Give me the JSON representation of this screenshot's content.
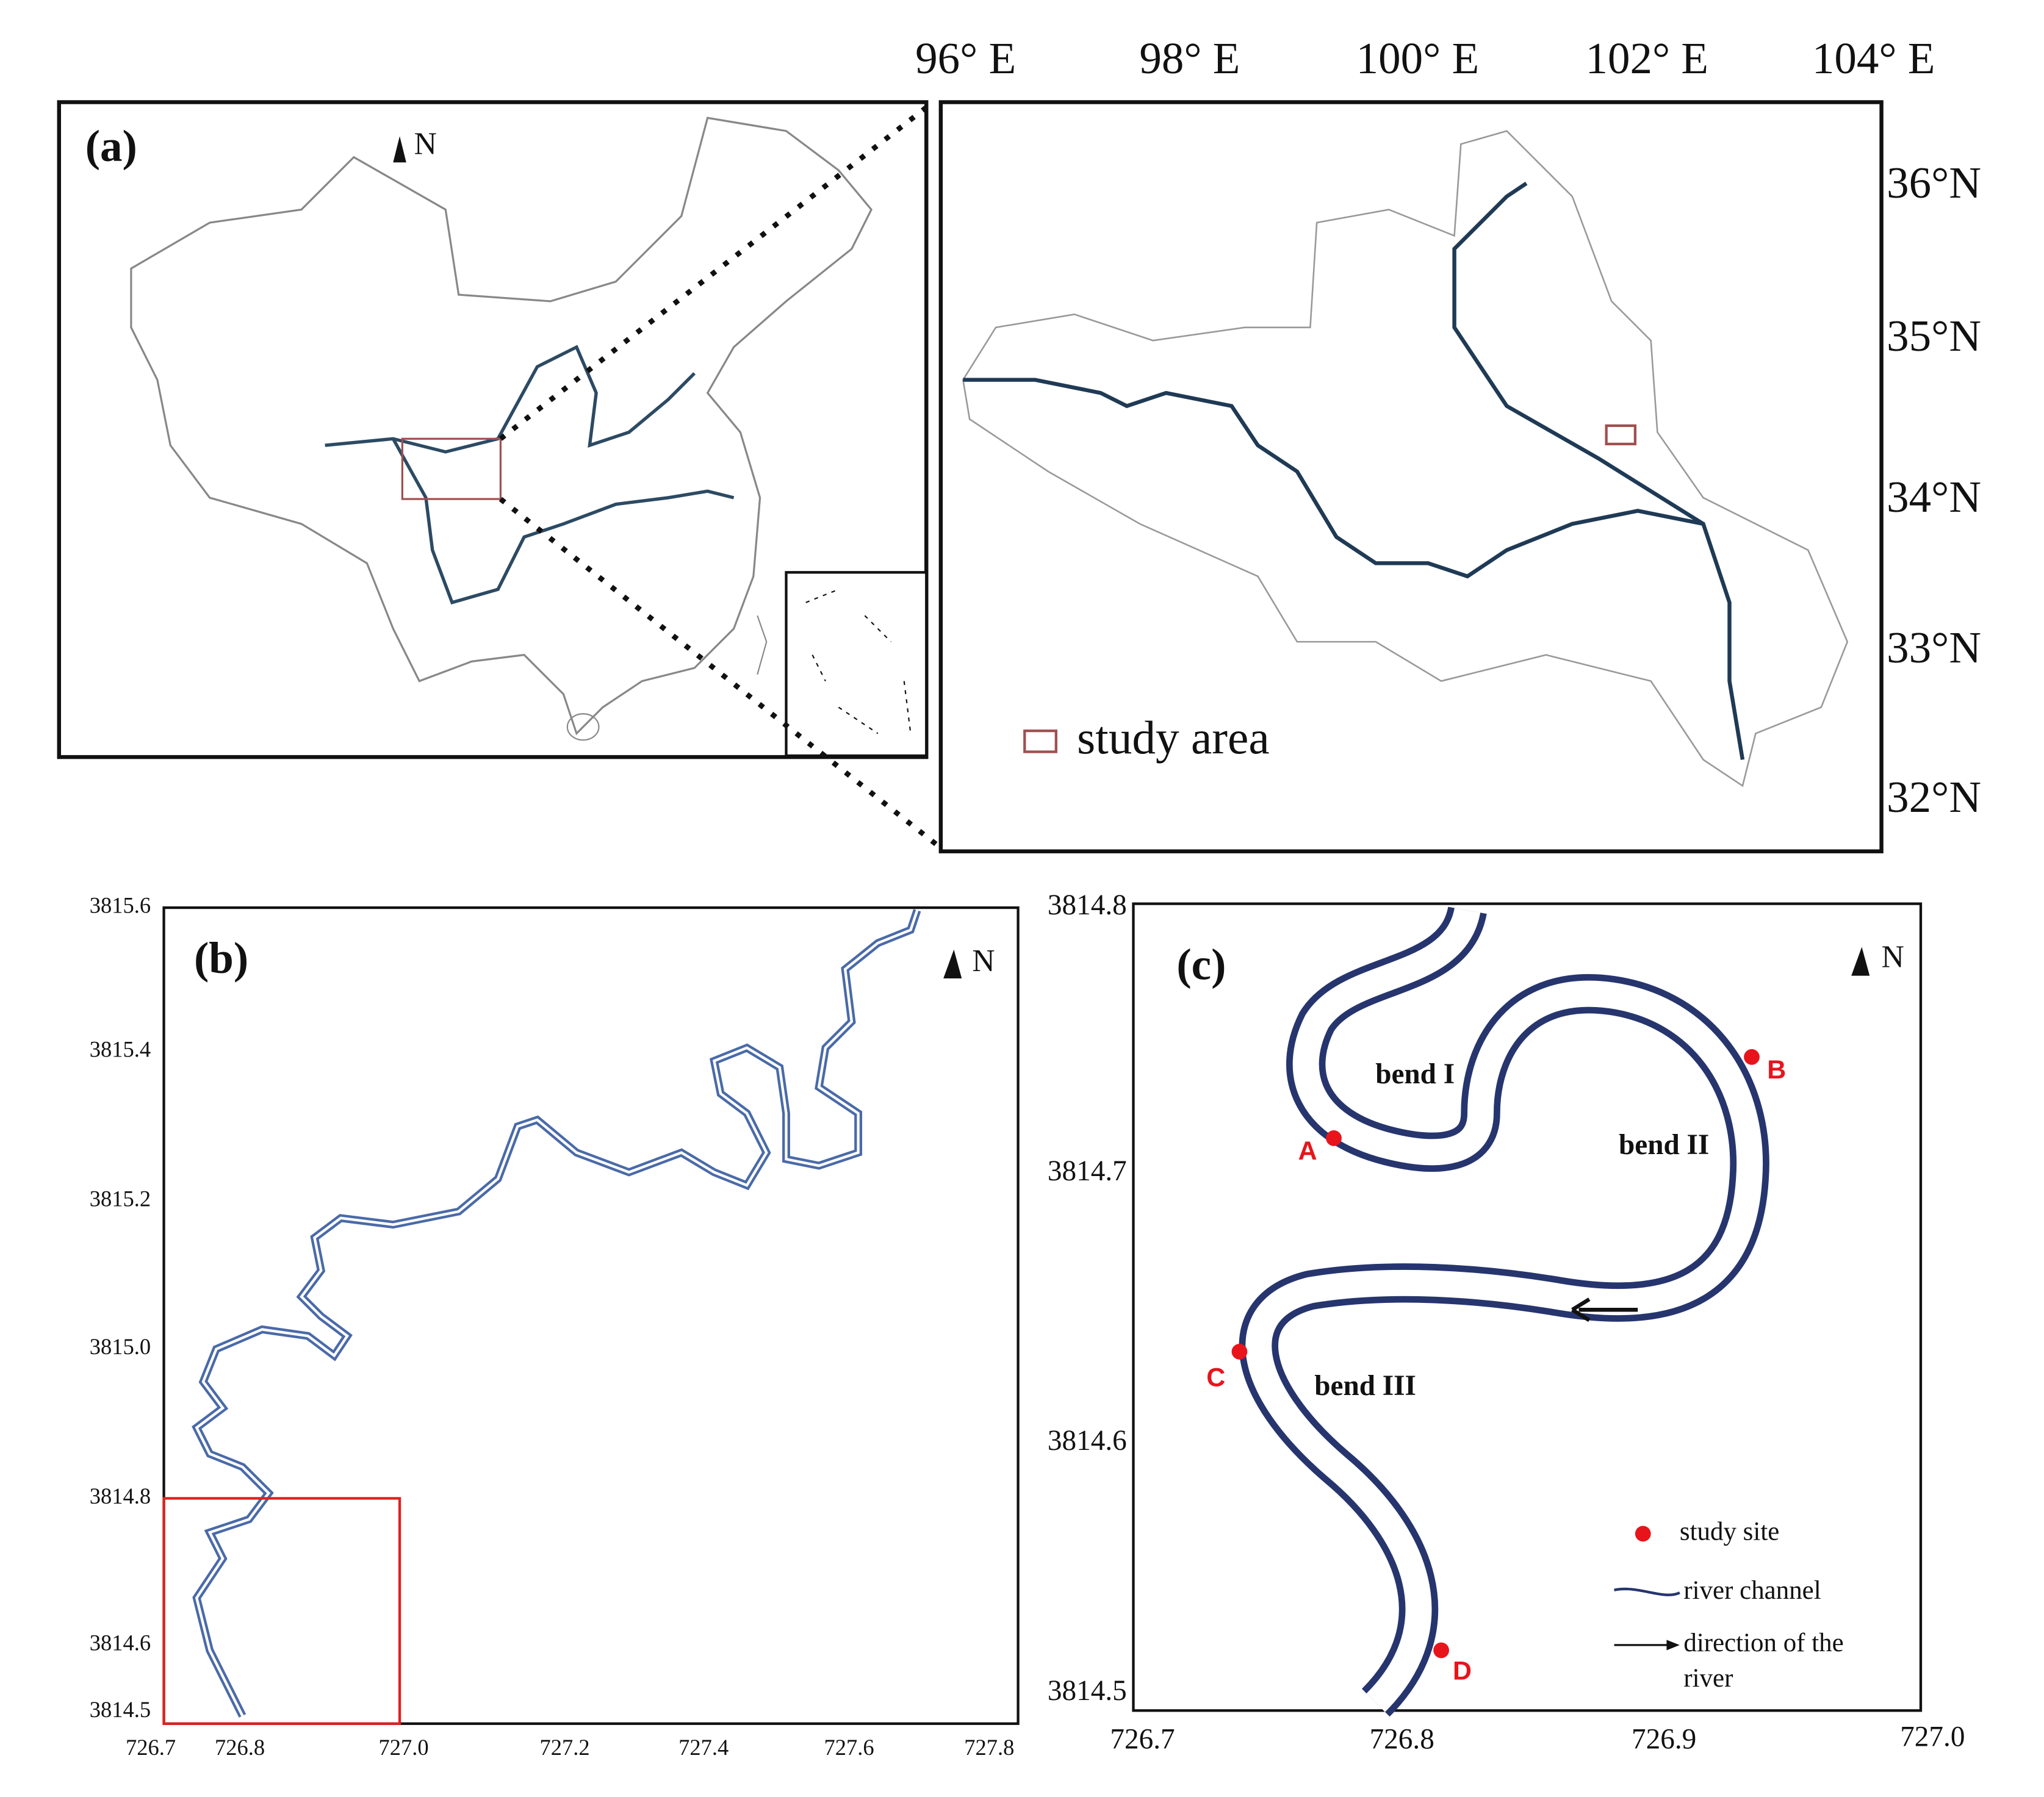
{
  "panel_a": {
    "label": "(a)",
    "north": "N",
    "lon_ticks": [
      "96° E",
      "98° E",
      "100° E",
      "102° E",
      "104° E"
    ],
    "lat_ticks": [
      "36°N",
      "35°N",
      "34°N",
      "33°N",
      "32°N"
    ],
    "legend": "study area"
  },
  "panel_b": {
    "label": "(b)",
    "north": "N",
    "y_ticks": [
      "3815.6",
      "3815.4",
      "3815.2",
      "3815.0",
      "3814.8",
      "3814.6",
      "3814.5"
    ],
    "x_ticks": [
      "726.7",
      "726.8",
      "727.0",
      "727.2",
      "727.4",
      "727.6",
      "727.8"
    ]
  },
  "panel_c": {
    "label": "(c)",
    "north": "N",
    "y_ticks": [
      "3814.8",
      "3814.7",
      "3814.6",
      "3814.5"
    ],
    "x_ticks": [
      "726.7",
      "726.8",
      "726.9",
      "727.0"
    ],
    "bends": [
      "bend I",
      "bend II",
      "bend III"
    ],
    "sites": [
      "A",
      "B",
      "C",
      "D"
    ],
    "legend": {
      "site": "study site",
      "channel": "river  channel",
      "direction": [
        "direction of the",
        "river"
      ]
    }
  }
}
